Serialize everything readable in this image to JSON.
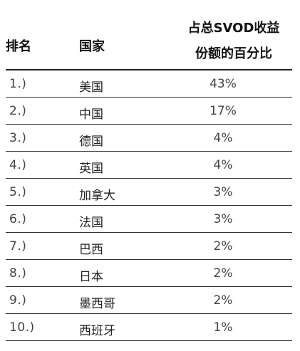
{
  "table": {
    "headers": {
      "rank": "排名",
      "country": "国家",
      "share_line1": "占总SVOD收益",
      "share_line2": "份额的百分比"
    },
    "rows": [
      {
        "rank": "1.)",
        "country": "美国",
        "share": "43%"
      },
      {
        "rank": "2.)",
        "country": "中国",
        "share": "17%"
      },
      {
        "rank": "3.)",
        "country": "德国",
        "share": "4%"
      },
      {
        "rank": "4.)",
        "country": "英国",
        "share": "4%"
      },
      {
        "rank": "5.)",
        "country": "加拿大",
        "share": "3%"
      },
      {
        "rank": "6.)",
        "country": "法国",
        "share": "3%"
      },
      {
        "rank": "7.)",
        "country": "巴西",
        "share": "2%"
      },
      {
        "rank": "8.)",
        "country": "日本",
        "share": "2%"
      },
      {
        "rank": "9.)",
        "country": "墨西哥",
        "share": "2%"
      },
      {
        "rank": "10.)",
        "country": "西班牙",
        "share": "1%"
      }
    ]
  }
}
